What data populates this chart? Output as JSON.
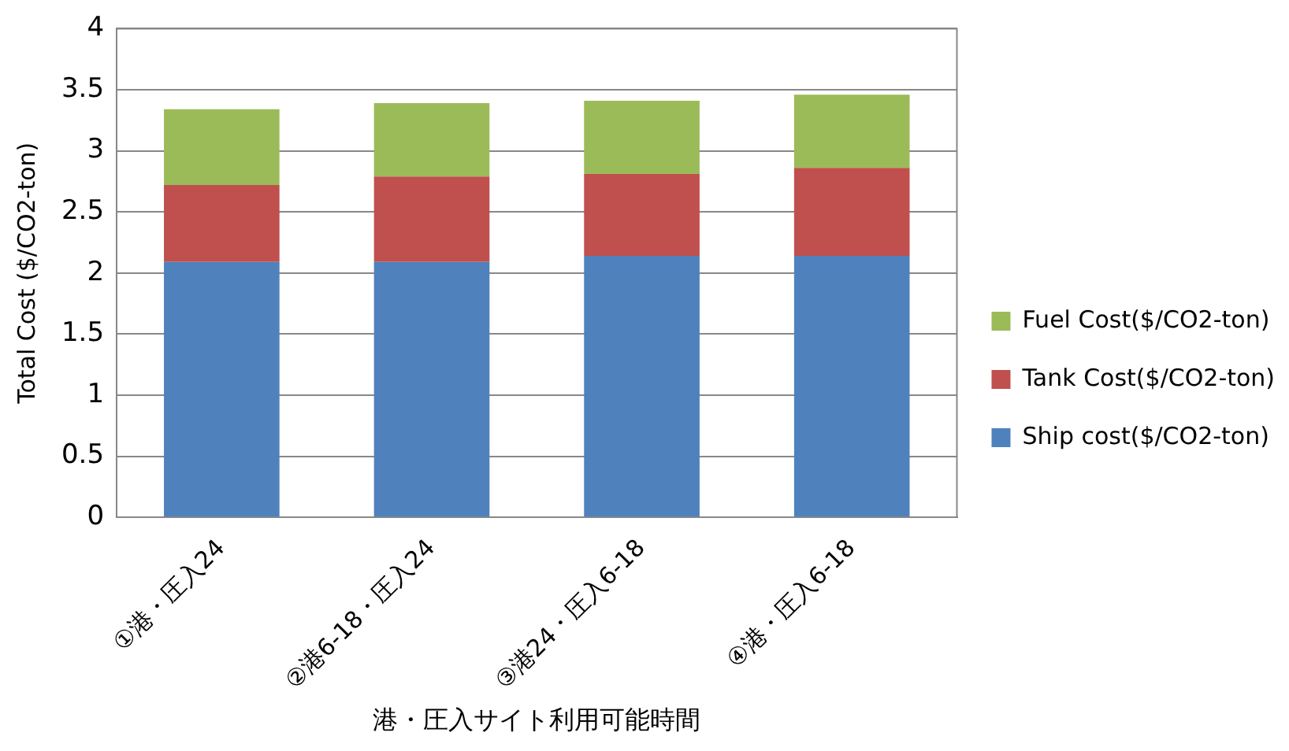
{
  "chart_data": {
    "type": "bar",
    "stacked": true,
    "xlabel": "港・圧入サイト利用可能時間",
    "ylabel": "Total Cost ($/CO2-ton)",
    "categories": [
      "①港・圧入24",
      "②港6-18・圧入24",
      "③港24・圧入6-18",
      "④港・圧入6-18"
    ],
    "series": [
      {
        "name": "Ship cost($/CO2-ton)",
        "color": "#4f81bd",
        "values": [
          2.09,
          2.09,
          2.14,
          2.14
        ]
      },
      {
        "name": "Tank Cost($/CO2-ton)",
        "color": "#c0504d",
        "values": [
          0.63,
          0.7,
          0.67,
          0.72
        ]
      },
      {
        "name": "Fuel Cost($/CO2-ton)",
        "color": "#9bbb59",
        "values": [
          0.62,
          0.6,
          0.6,
          0.6
        ]
      }
    ],
    "ylim": [
      0,
      4
    ],
    "yticks": [
      0,
      0.5,
      1,
      1.5,
      2,
      2.5,
      3,
      3.5,
      4
    ],
    "grid": "y",
    "legend": "right"
  }
}
